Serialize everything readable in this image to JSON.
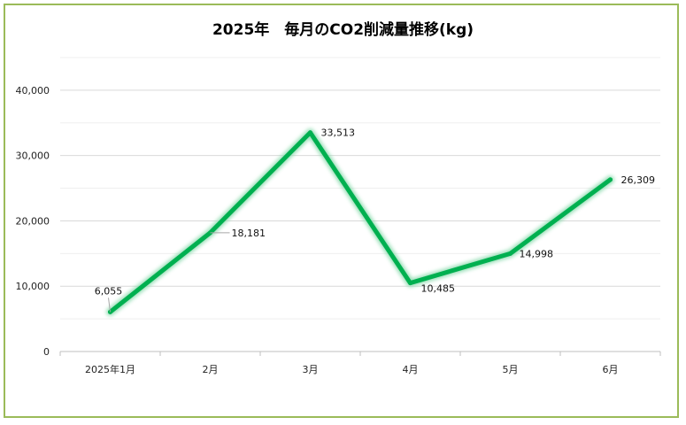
{
  "chart_data": {
    "type": "line",
    "title": "2025年　毎月のCO2削減量推移(kg)",
    "categories": [
      "2025年1月",
      "2月",
      "3月",
      "4月",
      "5月",
      "6月"
    ],
    "series": [
      {
        "values": [
          6055,
          18181,
          33513,
          10485,
          14998,
          26309
        ]
      }
    ],
    "data_labels": [
      "6,055",
      "18,181",
      "33,513",
      "10,485",
      "14,998",
      "26,309"
    ],
    "y_ticks": [
      "0",
      "10,000",
      "20,000",
      "30,000",
      "40,000"
    ],
    "ylim": [
      0,
      45000
    ],
    "grid": true,
    "line_color": "#00b050",
    "border_color": "#9bbb59"
  }
}
